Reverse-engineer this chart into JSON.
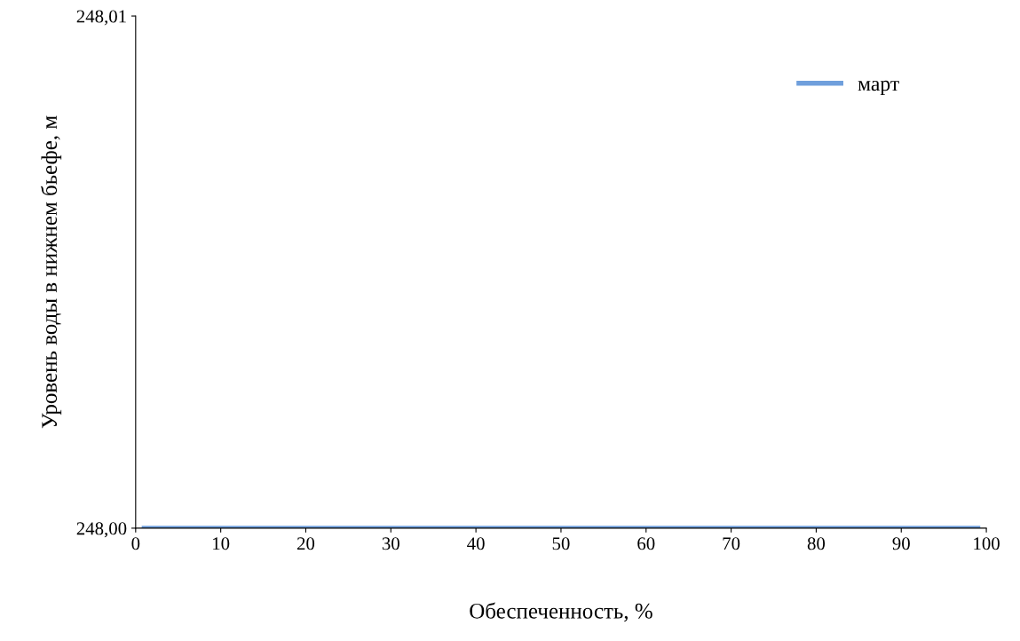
{
  "chart_data": {
    "type": "line",
    "xlabel": "Обеспеченность, %",
    "ylabel": "Уровень воды в нижнем бьефе, м",
    "series": [
      {
        "name": "март",
        "color": "#6f9fdc",
        "x": [
          1,
          99
        ],
        "values": [
          248.0,
          248.0
        ]
      }
    ],
    "xlim": [
      0,
      100
    ],
    "xticks": [
      0,
      10,
      20,
      30,
      40,
      50,
      60,
      70,
      80,
      90,
      100
    ],
    "ylim": [
      248.0,
      248.01
    ],
    "yticks": [
      {
        "value": 248.0,
        "label": "248,00"
      },
      {
        "value": 248.01,
        "label": "248,01"
      }
    ],
    "legend": "top right",
    "grid": false,
    "marker": "none",
    "line_style": "solid"
  }
}
